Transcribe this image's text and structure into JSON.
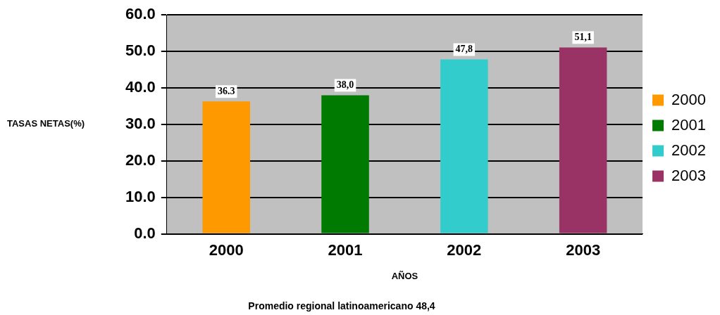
{
  "chart_data": {
    "type": "bar",
    "stacked": true,
    "categories": [
      "2000",
      "2001",
      "2002",
      "2003"
    ],
    "series": [
      {
        "name": "2000",
        "color": "#ff9900",
        "values": [
          36.3,
          null,
          null,
          null
        ],
        "value_labels": [
          "36.3",
          null,
          null,
          null
        ]
      },
      {
        "name": "2001",
        "color": "#007a00",
        "values": [
          null,
          38.0,
          null,
          null
        ],
        "value_labels": [
          null,
          "38,0",
          null,
          null
        ]
      },
      {
        "name": "2002",
        "color": "#33cccc",
        "values": [
          null,
          null,
          47.8,
          null
        ],
        "value_labels": [
          null,
          null,
          "47,8",
          null
        ]
      },
      {
        "name": "2003",
        "color": "#993366",
        "values": [
          null,
          null,
          null,
          51.1
        ],
        "value_labels": [
          null,
          null,
          null,
          "51,1"
        ]
      }
    ],
    "ylabel": "TASAS NETAS(%)",
    "xlabel": "AÑOS",
    "annotations": [
      "Promedio regional latinoamericano 48,4"
    ],
    "ylim": [
      0,
      60
    ],
    "yticks": [
      {
        "value": 0,
        "label": "0.0"
      },
      {
        "value": 10,
        "label": "10.0"
      },
      {
        "value": 20,
        "label": "20.0"
      },
      {
        "value": 30,
        "label": "30.0"
      },
      {
        "value": 40,
        "label": "40.0"
      },
      {
        "value": 50,
        "label": "50.0"
      },
      {
        "value": 60,
        "label": "60.0"
      }
    ],
    "grid": "y",
    "legend": "right"
  }
}
